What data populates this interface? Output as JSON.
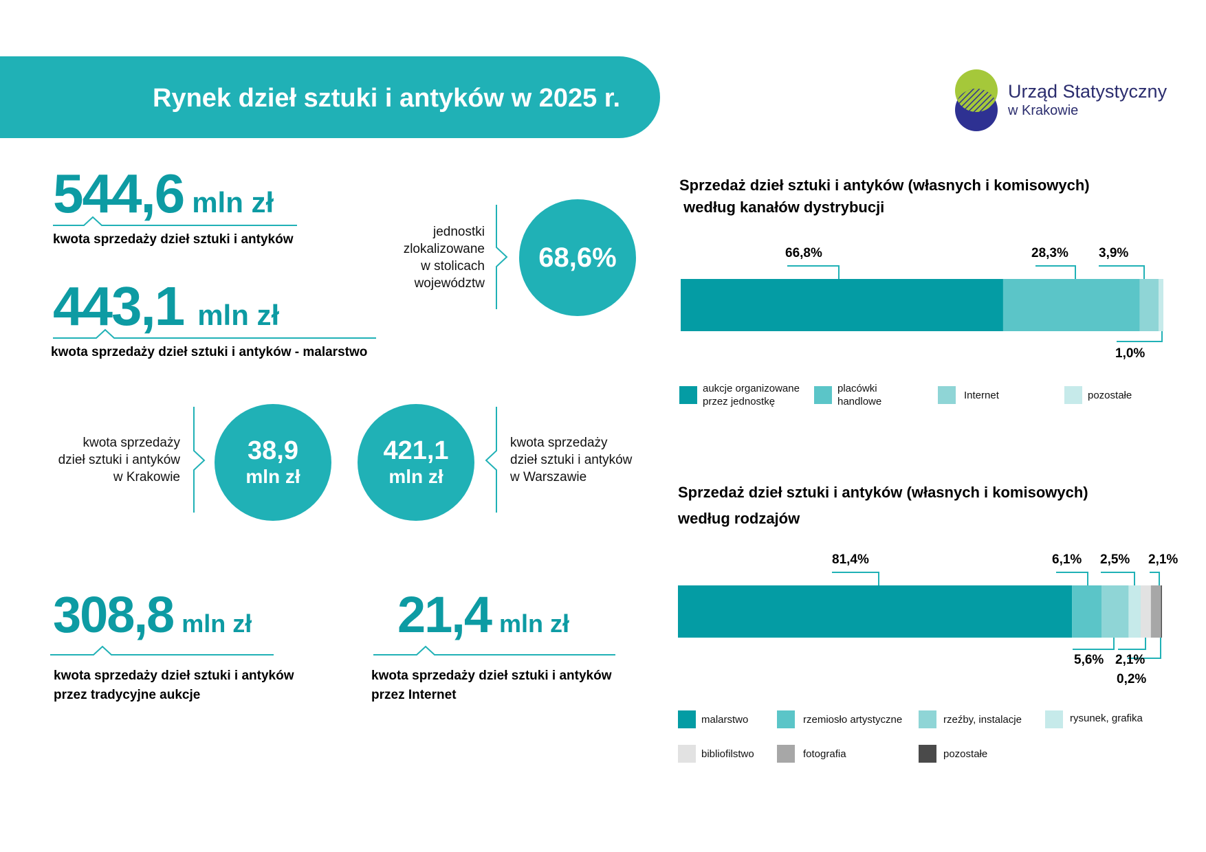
{
  "header": {
    "title": "Rynek dzieł sztuki i antyków w 2025 r."
  },
  "logo": {
    "line1": "Urząd Statystyczny",
    "line2": "w Krakowie",
    "colors": {
      "green": "#a5c83a",
      "navy": "#2e3192"
    }
  },
  "stats": {
    "total": {
      "value": "544,6",
      "unit": "mln zł",
      "caption": "kwota sprzedaży dzieł sztuki i antyków"
    },
    "painting": {
      "value": "443,1",
      "unit": "mln zł",
      "caption": "kwota sprzedaży dzieł sztuki i antyków - malarstwo"
    },
    "capitals": {
      "label": "jednostki zlokalizowane w stolicach województw",
      "label_lines": [
        "jednostki",
        "zlokalizowane",
        "w stolicach",
        "województw"
      ],
      "value": "68,6%"
    },
    "krakow": {
      "label_lines": [
        "kwota sprzedaży",
        "dzieł sztuki i antyków",
        "w Krakowie"
      ],
      "value": "38,9",
      "unit": "mln zł"
    },
    "warsaw": {
      "label_lines": [
        "kwota sprzedaży",
        "dzieł sztuki i antyków",
        "w Warszawie"
      ],
      "value": "421,1",
      "unit": "mln zł"
    },
    "auctions": {
      "value": "308,8",
      "unit": "mln zł",
      "caption_lines": [
        "kwota sprzedaży dzieł sztuki i antyków",
        "przez tradycyjne aukcje"
      ]
    },
    "internet": {
      "value": "21,4",
      "unit": "mln zł",
      "caption_lines": [
        "kwota sprzedaży dzieł sztuki i antyków",
        "przez Internet"
      ]
    }
  },
  "colors": {
    "accent": "#20b1b6",
    "dark_teal": "#0d9ba3"
  },
  "chart_data": [
    {
      "type": "bar",
      "orientation": "horizontal-stacked",
      "title_lines": [
        "Sprzedaż dzieł sztuki i antyków (własnych i komisowych)",
        " według kanałów dystrybucji"
      ],
      "series": [
        {
          "name": "aukcje organizowane przez jednostkę",
          "name_lines": [
            "aukcje organizowane",
            "przez jednostkę"
          ],
          "value": 66.8,
          "label": "66,8%",
          "color": "#049ca4"
        },
        {
          "name": "placówki handlowe",
          "name_lines": [
            "placówki",
            "handlowe"
          ],
          "value": 28.3,
          "label": "28,3%",
          "color": "#5bc5c8"
        },
        {
          "name": "Internet",
          "name_lines": [
            "Internet"
          ],
          "value": 3.9,
          "label": "3,9%",
          "color": "#8fd5d6"
        },
        {
          "name": "pozostałe",
          "name_lines": [
            "pozostałe"
          ],
          "value": 1.0,
          "label": "1,0%",
          "color": "#c6eaea"
        }
      ],
      "legend": "bottom"
    },
    {
      "type": "bar",
      "orientation": "horizontal-stacked",
      "title_lines": [
        "Sprzedaż dzieł sztuki i antyków (własnych i komisowych)",
        "według rodzajów"
      ],
      "series": [
        {
          "name": "malarstwo",
          "value": 81.4,
          "label": "81,4%",
          "color": "#049ca4"
        },
        {
          "name": "rzemiosło artystyczne",
          "value": 6.1,
          "label": "6,1%",
          "color": "#5bc5c8"
        },
        {
          "name": "rzeźby, instalacje",
          "value": 5.6,
          "label": "5,6%",
          "color": "#8fd5d6"
        },
        {
          "name": "rysunek, grafika",
          "value": 2.5,
          "label": "2,5%",
          "color": "#c6eaea"
        },
        {
          "name": "bibliofilstwo",
          "value": 2.1,
          "label": "2,1%",
          "color": "#e2e2e2"
        },
        {
          "name": "fotografia",
          "value": 2.1,
          "label": "2,1%",
          "color": "#a7a7a7"
        },
        {
          "name": "pozostałe",
          "value": 0.2,
          "label": "0,2%",
          "color": "#4a4a4a"
        }
      ],
      "legend": "bottom"
    }
  ]
}
